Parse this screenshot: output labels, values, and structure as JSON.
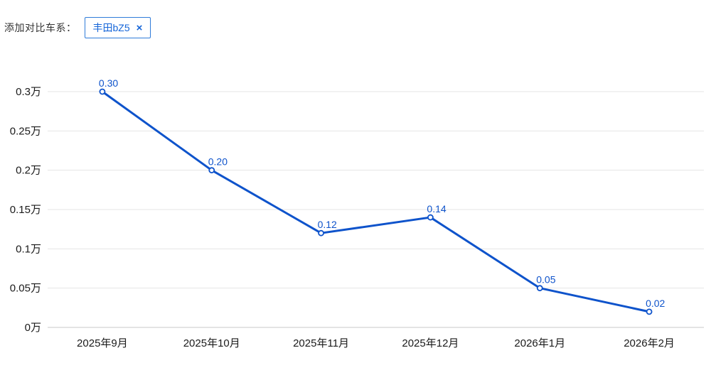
{
  "header": {
    "label": "添加对比车系：",
    "tag": {
      "name": "丰田bZ5",
      "close": "×"
    }
  },
  "colors": {
    "line": "#0e53cb",
    "point_fill": "#ffffff",
    "value_label": "#0e53cb",
    "grid": "#e5e5e5",
    "axis": "#c9c9c9",
    "tick_text": "#1a1a1a",
    "tag_border": "#2f7bd9",
    "tag_text": "#1565d8",
    "header_text": "#333333"
  },
  "chart_data": {
    "type": "line",
    "categories": [
      "2025年9月",
      "2025年10月",
      "2025年11月",
      "2025年12月",
      "2026年1月",
      "2026年2月"
    ],
    "values": [
      0.3,
      0.2,
      0.12,
      0.14,
      0.05,
      0.02
    ],
    "point_labels": [
      "0.30",
      "0.20",
      "0.12",
      "0.14",
      "0.05",
      "0.02"
    ],
    "series_name": "丰田bZ5",
    "unit": "万",
    "y_ticks": [
      0,
      0.05,
      0.1,
      0.15,
      0.2,
      0.25,
      0.3
    ],
    "y_tick_labels": [
      "0万",
      "0.05万",
      "0.1万",
      "0.15万",
      "0.2万",
      "0.25万",
      "0.3万"
    ],
    "ylim": [
      0,
      0.3
    ],
    "grid": true,
    "legend": "none",
    "title": "",
    "xlabel": "",
    "ylabel": ""
  }
}
